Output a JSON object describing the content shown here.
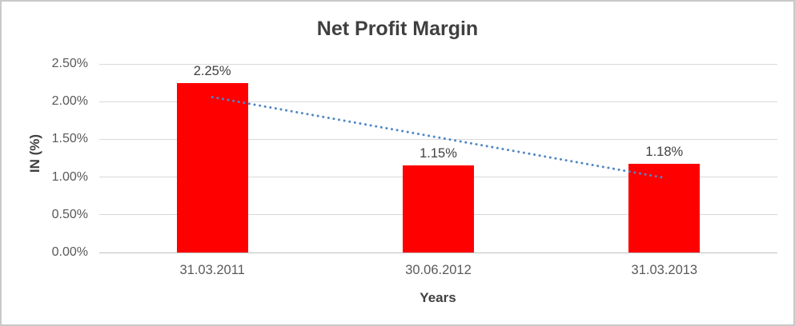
{
  "chart_data": {
    "type": "bar",
    "title": "Net Profit Margin",
    "xlabel": "Years",
    "ylabel": "IN (%)",
    "categories": [
      "31.03.2011",
      "30.06.2012",
      "31.03.2013"
    ],
    "values": [
      2.25,
      1.15,
      1.18
    ],
    "data_labels": [
      "2.25%",
      "1.15%",
      "1.18%"
    ],
    "ylim": [
      0,
      2.5
    ],
    "y_ticks": [
      {
        "label": "2.50%",
        "value": 2.5
      },
      {
        "label": "2.00%",
        "value": 2.0
      },
      {
        "label": "1.50%",
        "value": 1.5
      },
      {
        "label": "1.00%",
        "value": 1.0
      },
      {
        "label": "0.50%",
        "value": 0.5
      },
      {
        "label": "0.00%",
        "value": 0.0
      }
    ],
    "grid": true,
    "legend": "none",
    "bar_color": "#ff0000",
    "trendline": {
      "style": "dotted",
      "color": "#4f87c5",
      "start_value": 2.06,
      "end_value": 0.99
    }
  },
  "colors": {
    "title_text": "#404040",
    "axis_title_text": "#404040",
    "tick_label_text": "#595959",
    "data_label_text": "#404040",
    "gridline": "#d9d9d9",
    "axis_line": "#bfbfbf",
    "frame_border": "#c9c9c9",
    "background": "#ffffff"
  }
}
